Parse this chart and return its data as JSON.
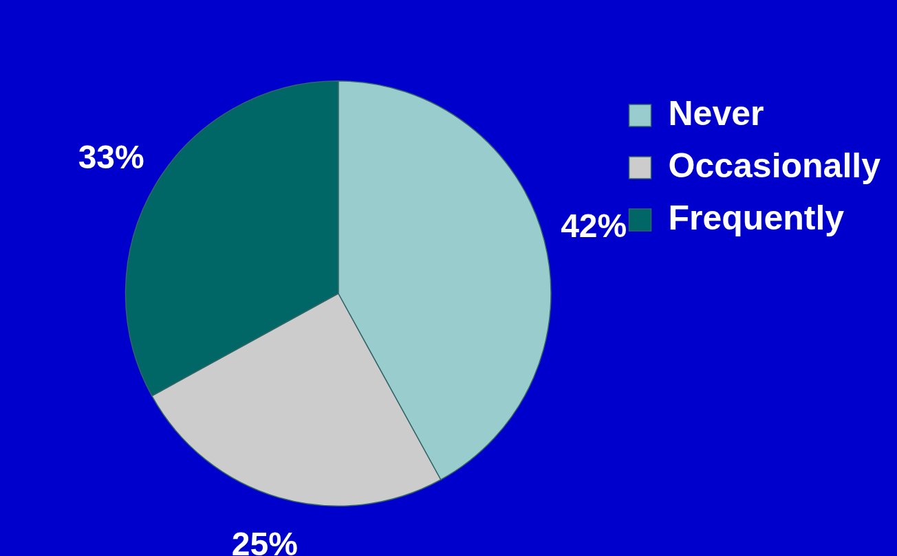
{
  "chart_data": {
    "type": "pie",
    "categories": [
      "Never",
      "Occasionally",
      "Frequently"
    ],
    "values": [
      42,
      25,
      33
    ],
    "colors": [
      "#99cccc",
      "#cccccc",
      "#006666"
    ],
    "value_labels": [
      "42%",
      "25%",
      "33%"
    ],
    "legend": "top right"
  }
}
